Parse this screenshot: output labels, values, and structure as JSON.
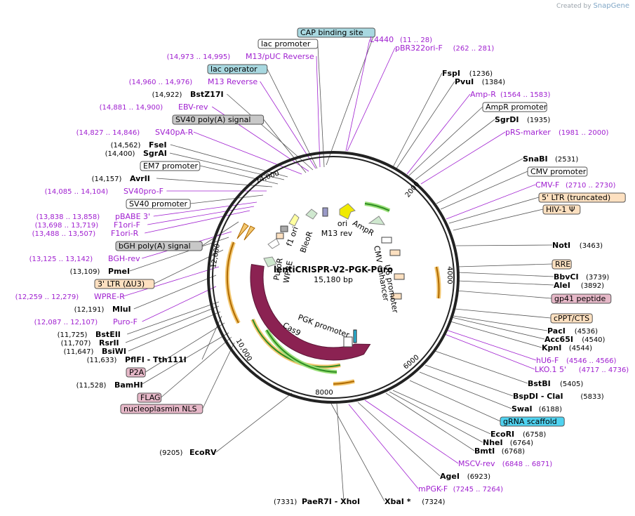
{
  "credit": {
    "prefix": "Created by",
    "brand": "SnapGene"
  },
  "plasmid": {
    "name": "lentiCRISPR-V2-PGK-Puro",
    "size": "15,180 bp"
  },
  "ticks": [
    "2000",
    "4000",
    "6000",
    "8000",
    "10,000",
    "12,000",
    "14,000"
  ],
  "colors": {
    "primer": "#a020d0",
    "backbone": "#222222",
    "cas9": "#8b2252",
    "feature_orange": "#f5c35a"
  },
  "labels": [
    {
      "kind": "feature",
      "box": "#a8d8e0",
      "text": "CAP binding site"
    },
    {
      "kind": "feature",
      "box": "#ffffff",
      "text": "lac promoter"
    },
    {
      "kind": "primer",
      "pos": "(14,973 .. 14,995)",
      "text": "M13/pUC Reverse"
    },
    {
      "kind": "feature",
      "box": "#a8d8e0",
      "text": "lac operator"
    },
    {
      "kind": "primer",
      "pos": "(14,960 .. 14,976)",
      "text": "M13 Reverse"
    },
    {
      "kind": "enzyme",
      "pos": "(14,922)",
      "text": "BstZ17I"
    },
    {
      "kind": "primer",
      "pos": "(14,881 .. 14,900)",
      "text": "EBV-rev"
    },
    {
      "kind": "feature",
      "box": "#c8c8c8",
      "text": "SV40 poly(A) signal"
    },
    {
      "kind": "primer",
      "pos": "(14,827 .. 14,846)",
      "text": "SV40pA-R"
    },
    {
      "kind": "enzyme",
      "pos": "(14,562)",
      "text": "FseI"
    },
    {
      "kind": "enzyme",
      "pos": "(14,400)",
      "text": "SgrAI"
    },
    {
      "kind": "feature",
      "box": "#ffffff",
      "text": "EM7 promoter"
    },
    {
      "kind": "enzyme",
      "pos": "(14,157)",
      "text": "AvrII"
    },
    {
      "kind": "primer",
      "pos": "(14,085 .. 14,104)",
      "text": "SV40pro-F"
    },
    {
      "kind": "feature",
      "box": "#ffffff",
      "text": "SV40 promoter"
    },
    {
      "kind": "primer",
      "pos": "(13,838 .. 13,858)",
      "text": "pBABE 3'"
    },
    {
      "kind": "primer",
      "pos": "(13,698 .. 13,719)",
      "text": "F1ori-F"
    },
    {
      "kind": "primer",
      "pos": "(13,488 .. 13,507)",
      "text": "F1ori-R"
    },
    {
      "kind": "feature",
      "box": "#c8c8c8",
      "text": "bGH poly(A) signal"
    },
    {
      "kind": "primer",
      "pos": "(13,125 .. 13,142)",
      "text": "BGH-rev"
    },
    {
      "kind": "enzyme",
      "pos": "(13,109)",
      "text": "PmeI"
    },
    {
      "kind": "feature",
      "box": "#fde0c0",
      "text": "3' LTR (ΔU3)"
    },
    {
      "kind": "primer",
      "pos": "(12,259 .. 12,279)",
      "text": "WPRE-R"
    },
    {
      "kind": "enzyme",
      "pos": "(12,191)",
      "text": "MluI"
    },
    {
      "kind": "primer",
      "pos": "(12,087 .. 12,107)",
      "text": "Puro-F"
    },
    {
      "kind": "enzyme",
      "pos": "(11,725)",
      "text": "BstEII"
    },
    {
      "kind": "enzyme",
      "pos": "(11,707)",
      "text": "RsrII"
    },
    {
      "kind": "enzyme",
      "pos": "(11,647)",
      "text": "BsiWI"
    },
    {
      "kind": "enzyme",
      "pos": "(11,633)",
      "text": "PflFI - Tth111I"
    },
    {
      "kind": "feature",
      "box": "#e6b8c8",
      "text": "P2A"
    },
    {
      "kind": "enzyme",
      "pos": "(11,528)",
      "text": "BamHI"
    },
    {
      "kind": "feature",
      "box": "#e6b8c8",
      "text": "FLAG"
    },
    {
      "kind": "feature",
      "box": "#e6b8c8",
      "text": "nucleoplasmin NLS"
    },
    {
      "kind": "enzyme",
      "pos": "(9205)",
      "text": "EcoRV"
    },
    {
      "kind": "primer",
      "pos": "(11 .. 28)",
      "text": "L4440"
    },
    {
      "kind": "primer",
      "pos": "(262 .. 281)",
      "text": "pBR322ori-F"
    },
    {
      "kind": "enzyme",
      "pos": "(1236)",
      "text": "FspI"
    },
    {
      "kind": "enzyme",
      "pos": "(1384)",
      "text": "PvuI"
    },
    {
      "kind": "primer",
      "pos": "(1564 .. 1583)",
      "text": "Amp-R"
    },
    {
      "kind": "feature",
      "box": "#ffffff",
      "text": "AmpR promoter"
    },
    {
      "kind": "enzyme",
      "pos": "(1935)",
      "text": "SgrDI"
    },
    {
      "kind": "primer",
      "pos": "(1981 .. 2000)",
      "text": "pRS-marker"
    },
    {
      "kind": "enzyme",
      "pos": "(2531)",
      "text": "SnaBI"
    },
    {
      "kind": "feature",
      "box": "#ffffff",
      "text": "CMV promoter"
    },
    {
      "kind": "primer",
      "pos": "(2710 .. 2730)",
      "text": "CMV-F"
    },
    {
      "kind": "feature",
      "box": "#fde0c0",
      "text": "5' LTR (truncated)"
    },
    {
      "kind": "feature",
      "box": "#fde0c0",
      "text": "HIV-1 Ψ"
    },
    {
      "kind": "enzyme",
      "pos": "(3463)",
      "text": "NotI"
    },
    {
      "kind": "feature",
      "box": "#fde0c0",
      "text": "RRE"
    },
    {
      "kind": "enzyme",
      "pos": "(3739)",
      "text": "BbvCI"
    },
    {
      "kind": "enzyme",
      "pos": "(3892)",
      "text": "AleI"
    },
    {
      "kind": "feature",
      "box": "#e6b8c8",
      "text": "gp41 peptide"
    },
    {
      "kind": "feature",
      "box": "#fde0c0",
      "text": "cPPT/CTS"
    },
    {
      "kind": "enzyme",
      "pos": "(4536)",
      "text": "PacI"
    },
    {
      "kind": "enzyme",
      "pos": "(4540)",
      "text": "Acc65I"
    },
    {
      "kind": "enzyme",
      "pos": "(4544)",
      "text": "KpnI"
    },
    {
      "kind": "primer",
      "pos": "(4546 .. 4566)",
      "text": "hU6-F"
    },
    {
      "kind": "primer",
      "pos": "(4717 .. 4736)",
      "text": "LKO.1 5'"
    },
    {
      "kind": "enzyme",
      "pos": "(5405)",
      "text": "BstBI"
    },
    {
      "kind": "enzyme",
      "pos": "(5833)",
      "text": "BspDI - ClaI"
    },
    {
      "kind": "enzyme",
      "pos": "(6188)",
      "text": "SwaI"
    },
    {
      "kind": "feature",
      "box": "#4fd2f0",
      "text": "gRNA scaffold"
    },
    {
      "kind": "enzyme",
      "pos": "(6758)",
      "text": "EcoRI"
    },
    {
      "kind": "enzyme",
      "pos": "(6764)",
      "text": "NheI"
    },
    {
      "kind": "enzyme",
      "pos": "(6768)",
      "text": "BmtI"
    },
    {
      "kind": "primer",
      "pos": "(6848 .. 6871)",
      "text": "MSCV-rev"
    },
    {
      "kind": "enzyme",
      "pos": "(6923)",
      "text": "AgeI"
    },
    {
      "kind": "primer",
      "pos": "(7245 .. 7264)",
      "text": "mPGK-F"
    },
    {
      "kind": "enzyme",
      "pos": "(7331)",
      "text": "PaeR7I - XhoI"
    },
    {
      "kind": "enzyme",
      "pos": "(7324)",
      "text": "XbaI *"
    }
  ],
  "inner_labels": [
    "f1 ori",
    "BleoR",
    "ori",
    "M13 rev",
    "AmpR",
    "PuroR",
    "WPRE",
    "CMV enhancer",
    "U6 promoter",
    "PGK promoter",
    "Cas9"
  ]
}
